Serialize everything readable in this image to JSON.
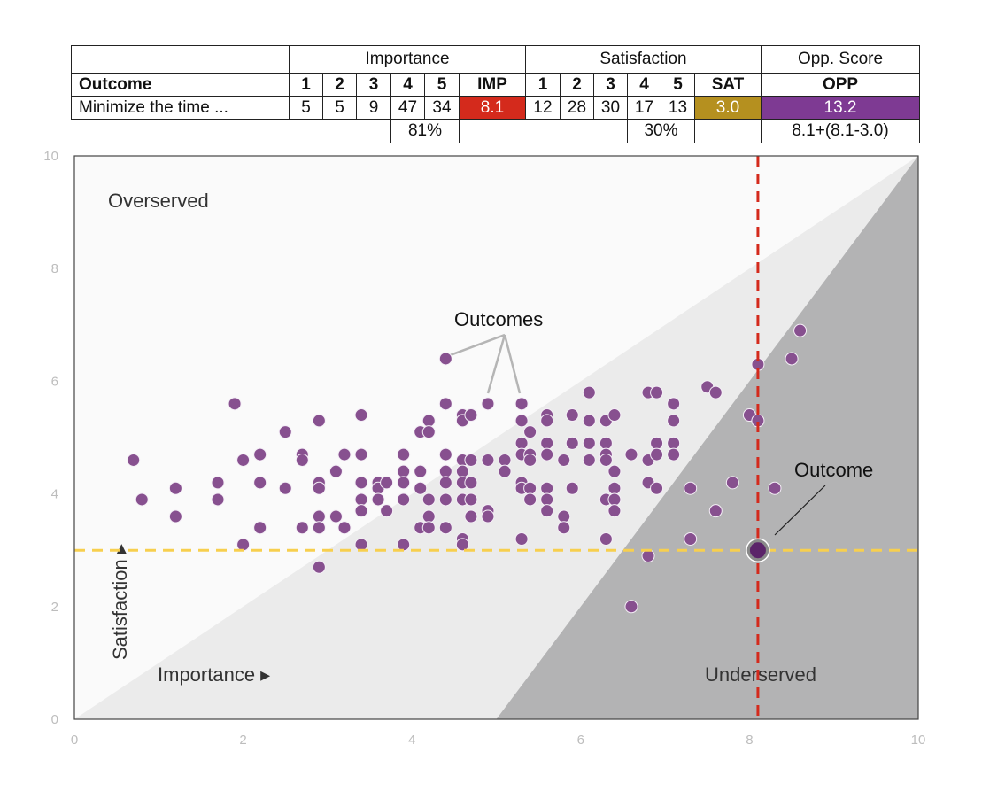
{
  "table": {
    "importance_header": "Importance",
    "satisfaction_header": "Satisfaction",
    "opp_header": "Opp. Score",
    "outcome_header": "Outcome",
    "scale_labels": [
      "1",
      "2",
      "3",
      "4",
      "5"
    ],
    "imp_label": "IMP",
    "sat_label": "SAT",
    "opp_label": "OPP",
    "row": {
      "outcome": "Minimize the time ...",
      "importance_counts": [
        "5",
        "5",
        "9",
        "47",
        "34"
      ],
      "imp": "8.1",
      "satisfaction_counts": [
        "12",
        "28",
        "30",
        "17",
        "13"
      ],
      "sat": "3.0",
      "opp": "13.2"
    },
    "imp_top2": "81%",
    "sat_top2": "30%",
    "opp_formula": "8.1+(8.1-3.0)"
  },
  "colors": {
    "imp": "#d42a1c",
    "sat": "#b5901f",
    "opp": "#7e3a93",
    "points": "#87508f",
    "highlight": "#5b2369"
  },
  "chart_data": {
    "type": "scatter",
    "xlabel": "Importance ▸",
    "ylabel": "Satisfaction ▸",
    "xlim": [
      0,
      10
    ],
    "ylim": [
      0,
      10
    ],
    "x_ticks": [
      "0",
      "2",
      "4",
      "6",
      "8",
      "10"
    ],
    "y_ticks": [
      "0",
      "2",
      "4",
      "6",
      "8",
      "10"
    ],
    "grid": false,
    "regions": {
      "overserved": "Overserved",
      "underserved": "Underserved"
    },
    "annotations": {
      "outcomes": "Outcomes",
      "outcome": "Outcome"
    },
    "highlight": {
      "x": 8.1,
      "y": 3.0
    },
    "points": [
      [
        0.7,
        4.6
      ],
      [
        0.8,
        3.9
      ],
      [
        1.2,
        4.1
      ],
      [
        1.2,
        3.6
      ],
      [
        1.7,
        4.2
      ],
      [
        1.7,
        3.9
      ],
      [
        1.9,
        5.6
      ],
      [
        2.0,
        4.6
      ],
      [
        2.0,
        3.1
      ],
      [
        2.2,
        4.7
      ],
      [
        2.2,
        4.2
      ],
      [
        2.2,
        3.4
      ],
      [
        2.5,
        5.1
      ],
      [
        2.5,
        4.1
      ],
      [
        2.7,
        4.7
      ],
      [
        2.7,
        4.6
      ],
      [
        2.7,
        3.4
      ],
      [
        2.9,
        5.3
      ],
      [
        2.9,
        4.2
      ],
      [
        2.9,
        4.1
      ],
      [
        2.9,
        3.6
      ],
      [
        2.9,
        3.4
      ],
      [
        2.9,
        2.7
      ],
      [
        3.1,
        4.4
      ],
      [
        3.1,
        3.6
      ],
      [
        3.2,
        4.7
      ],
      [
        3.2,
        3.4
      ],
      [
        3.4,
        5.4
      ],
      [
        3.4,
        4.7
      ],
      [
        3.4,
        4.2
      ],
      [
        3.4,
        3.9
      ],
      [
        3.4,
        3.7
      ],
      [
        3.4,
        3.1
      ],
      [
        3.6,
        4.2
      ],
      [
        3.6,
        4.1
      ],
      [
        3.6,
        3.9
      ],
      [
        3.7,
        3.7
      ],
      [
        3.7,
        4.2
      ],
      [
        3.9,
        4.7
      ],
      [
        3.9,
        4.4
      ],
      [
        3.9,
        4.2
      ],
      [
        3.9,
        3.9
      ],
      [
        3.9,
        3.1
      ],
      [
        4.1,
        5.1
      ],
      [
        4.1,
        4.4
      ],
      [
        4.1,
        4.1
      ],
      [
        4.1,
        3.4
      ],
      [
        4.2,
        5.3
      ],
      [
        4.2,
        5.1
      ],
      [
        4.2,
        3.9
      ],
      [
        4.2,
        3.6
      ],
      [
        4.2,
        3.4
      ],
      [
        4.4,
        6.4
      ],
      [
        4.4,
        5.6
      ],
      [
        4.4,
        4.7
      ],
      [
        4.4,
        4.4
      ],
      [
        4.4,
        4.2
      ],
      [
        4.4,
        3.9
      ],
      [
        4.4,
        3.4
      ],
      [
        4.6,
        5.4
      ],
      [
        4.6,
        5.3
      ],
      [
        4.7,
        5.4
      ],
      [
        4.6,
        4.6
      ],
      [
        4.7,
        4.6
      ],
      [
        4.6,
        4.4
      ],
      [
        4.6,
        4.2
      ],
      [
        4.7,
        4.2
      ],
      [
        4.6,
        3.9
      ],
      [
        4.6,
        3.2
      ],
      [
        4.6,
        3.1
      ],
      [
        4.7,
        3.6
      ],
      [
        4.7,
        3.9
      ],
      [
        4.9,
        5.6
      ],
      [
        4.9,
        4.6
      ],
      [
        4.9,
        3.7
      ],
      [
        4.9,
        3.6
      ],
      [
        5.1,
        4.6
      ],
      [
        5.1,
        4.4
      ],
      [
        5.3,
        5.6
      ],
      [
        5.3,
        5.3
      ],
      [
        5.3,
        4.9
      ],
      [
        5.3,
        4.7
      ],
      [
        5.3,
        4.2
      ],
      [
        5.3,
        4.1
      ],
      [
        5.3,
        3.2
      ],
      [
        5.4,
        5.1
      ],
      [
        5.4,
        4.7
      ],
      [
        5.4,
        4.6
      ],
      [
        5.4,
        4.1
      ],
      [
        5.4,
        3.9
      ],
      [
        5.6,
        5.4
      ],
      [
        5.6,
        5.3
      ],
      [
        5.6,
        4.9
      ],
      [
        5.6,
        4.7
      ],
      [
        5.6,
        4.1
      ],
      [
        5.6,
        3.9
      ],
      [
        5.6,
        3.7
      ],
      [
        5.8,
        4.6
      ],
      [
        5.8,
        3.6
      ],
      [
        5.8,
        3.4
      ],
      [
        5.9,
        5.4
      ],
      [
        5.9,
        4.9
      ],
      [
        5.9,
        4.1
      ],
      [
        6.1,
        5.8
      ],
      [
        6.1,
        5.3
      ],
      [
        6.1,
        4.9
      ],
      [
        6.1,
        4.6
      ],
      [
        6.3,
        5.3
      ],
      [
        6.3,
        4.9
      ],
      [
        6.3,
        4.7
      ],
      [
        6.3,
        4.6
      ],
      [
        6.3,
        3.9
      ],
      [
        6.3,
        3.2
      ],
      [
        6.4,
        5.4
      ],
      [
        6.4,
        4.4
      ],
      [
        6.4,
        4.1
      ],
      [
        6.4,
        3.9
      ],
      [
        6.4,
        3.7
      ],
      [
        6.6,
        4.7
      ],
      [
        6.6,
        2.0
      ],
      [
        6.8,
        5.8
      ],
      [
        6.8,
        4.6
      ],
      [
        6.8,
        4.2
      ],
      [
        6.8,
        2.9
      ],
      [
        6.9,
        5.8
      ],
      [
        6.9,
        4.9
      ],
      [
        6.9,
        4.7
      ],
      [
        6.9,
        4.1
      ],
      [
        7.1,
        5.6
      ],
      [
        7.1,
        5.3
      ],
      [
        7.1,
        4.9
      ],
      [
        7.1,
        4.7
      ],
      [
        7.3,
        4.1
      ],
      [
        7.3,
        3.2
      ],
      [
        7.5,
        5.9
      ],
      [
        7.6,
        5.8
      ],
      [
        7.6,
        3.7
      ],
      [
        7.8,
        4.2
      ],
      [
        8.0,
        5.4
      ],
      [
        8.1,
        6.3
      ],
      [
        8.1,
        5.3
      ],
      [
        8.3,
        4.1
      ],
      [
        8.5,
        6.4
      ],
      [
        8.6,
        6.9
      ]
    ]
  }
}
